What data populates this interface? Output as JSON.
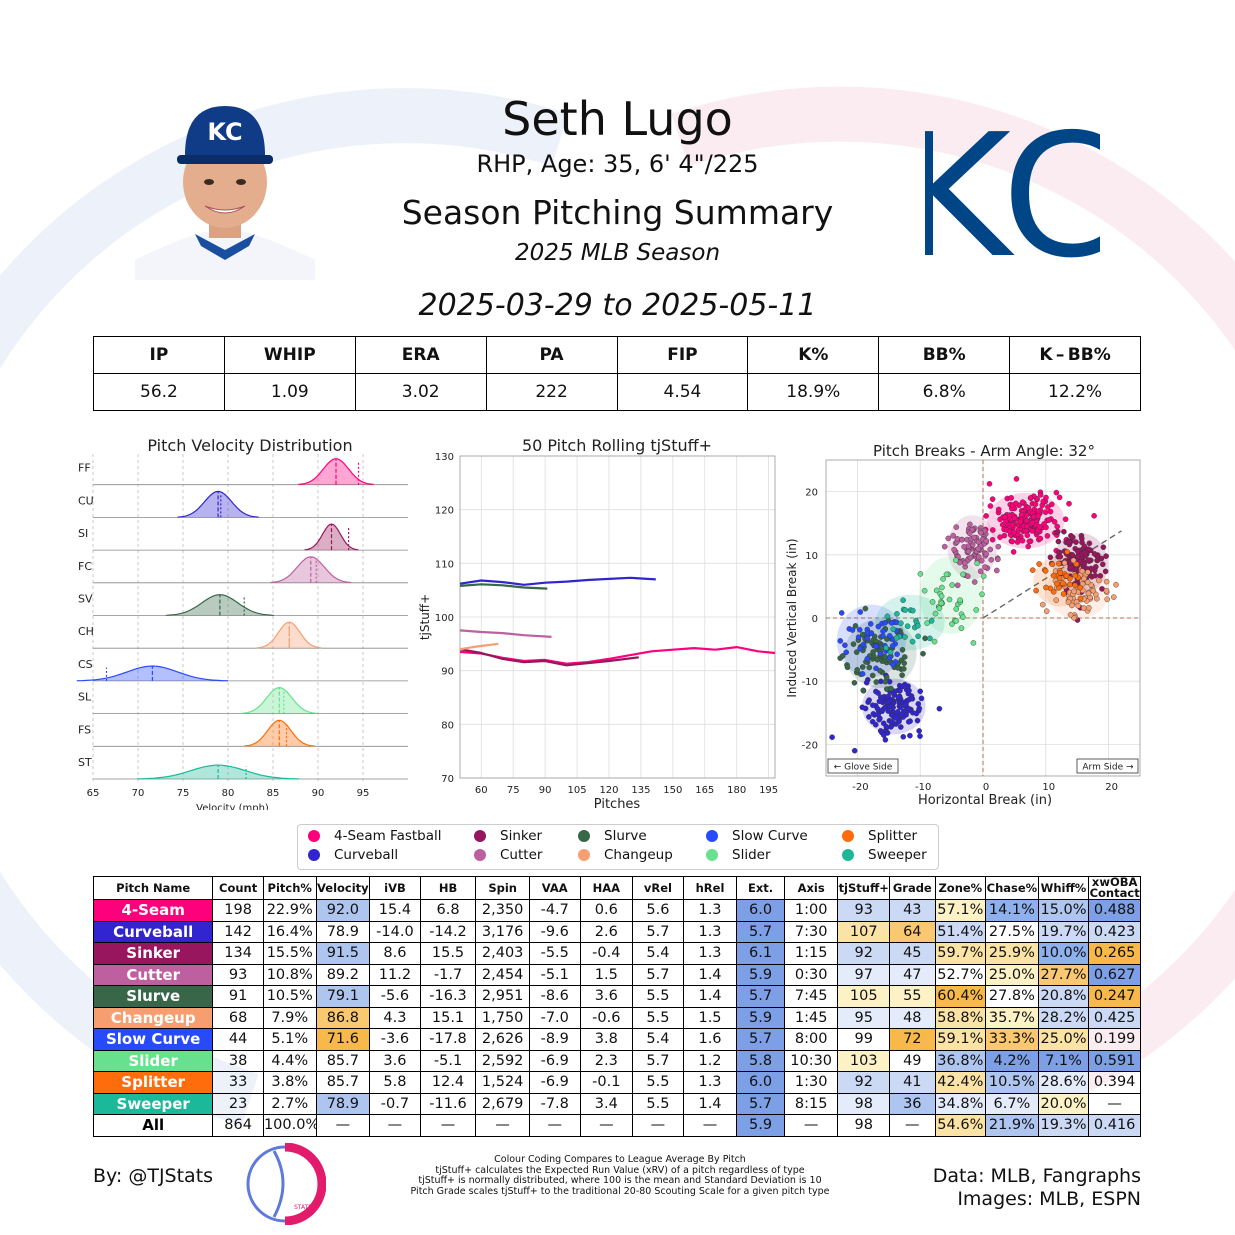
{
  "header": {
    "name": "Seth Lugo",
    "info": "RHP, Age: 35, 6' 4\"/225",
    "title": "Season Pitching Summary",
    "season": "2025 MLB Season",
    "dates": "2025-03-29 to 2025-05-11",
    "team_logo_text": "KC",
    "team_color": "#004687"
  },
  "summary": {
    "headers": [
      "IP",
      "WHIP",
      "ERA",
      "PA",
      "FIP",
      "K%",
      "BB%",
      "K – BB%"
    ],
    "values": [
      "56.2",
      "1.09",
      "3.02",
      "222",
      "4.54",
      "18.9%",
      "6.8%",
      "12.2%"
    ]
  },
  "chart_data": [
    {
      "type": "area",
      "title": "Pitch Velocity Distribution",
      "xlabel": "Velocity (mph)",
      "ylabel": "",
      "xlim": [
        65,
        100
      ],
      "x_ticks": [
        65,
        70,
        75,
        80,
        85,
        90,
        95
      ],
      "series": [
        {
          "code": "FF",
          "mean": 92.0,
          "sd": 1.4,
          "league": 94.5,
          "color": "#FF007D"
        },
        {
          "code": "CU",
          "mean": 78.9,
          "sd": 1.5,
          "league": 79.2,
          "color": "#3025CE"
        },
        {
          "code": "SI",
          "mean": 91.5,
          "sd": 1.0,
          "league": 93.4,
          "color": "#98165D"
        },
        {
          "code": "FC",
          "mean": 89.2,
          "sd": 1.5,
          "league": 89.8,
          "color": "#BE5FA0"
        },
        {
          "code": "SV",
          "mean": 79.1,
          "sd": 2.0,
          "league": 81.8,
          "color": "#376748"
        },
        {
          "code": "CH",
          "mean": 86.8,
          "sd": 1.2,
          "league": 86.8,
          "color": "#F79E70"
        },
        {
          "code": "CS",
          "mean": 71.6,
          "sd": 2.8,
          "league": 66.5,
          "color": "#274BFC"
        },
        {
          "code": "SL",
          "mean": 85.7,
          "sd": 1.4,
          "league": 86.2,
          "color": "#67E18D"
        },
        {
          "code": "FS",
          "mean": 85.7,
          "sd": 1.3,
          "league": 86.5,
          "color": "#FF6C0C"
        },
        {
          "code": "ST",
          "mean": 78.9,
          "sd": 3.0,
          "league": 82.0,
          "color": "#1BB999"
        }
      ]
    },
    {
      "type": "line",
      "title": "50 Pitch Rolling tjStuff+",
      "xlabel": "Pitches",
      "ylabel": "tjStuff+",
      "xlim": [
        50,
        198
      ],
      "ylim": [
        70,
        130
      ],
      "x_ticks": [
        60,
        75,
        90,
        105,
        120,
        135,
        150,
        165,
        180,
        195
      ],
      "y_ticks": [
        70,
        80,
        90,
        100,
        110,
        120,
        130
      ],
      "series": [
        {
          "name": "4-Seam Fastball",
          "color": "#FF007D",
          "x": [
            50,
            60,
            70,
            80,
            90,
            100,
            110,
            120,
            130,
            140,
            150,
            160,
            170,
            180,
            190,
            198
          ],
          "y": [
            93.5,
            93.2,
            92.4,
            91.8,
            92.0,
            91.3,
            91.6,
            92.2,
            92.9,
            93.6,
            93.9,
            94.2,
            93.9,
            94.4,
            93.6,
            93.3
          ]
        },
        {
          "name": "Curveball",
          "color": "#3025CE",
          "x": [
            50,
            60,
            70,
            80,
            90,
            100,
            110,
            120,
            130,
            142
          ],
          "y": [
            106.2,
            106.8,
            106.5,
            106.0,
            106.4,
            106.6,
            106.9,
            107.1,
            107.3,
            107.0
          ]
        },
        {
          "name": "Sinker",
          "color": "#98165D",
          "x": [
            50,
            60,
            70,
            80,
            90,
            100,
            110,
            120,
            134
          ],
          "y": [
            94.0,
            93.3,
            92.2,
            91.6,
            91.8,
            91.0,
            91.4,
            91.8,
            92.5
          ]
        },
        {
          "name": "Cutter",
          "color": "#BE5FA0",
          "x": [
            50,
            60,
            70,
            80,
            93
          ],
          "y": [
            97.5,
            97.2,
            97.0,
            96.6,
            96.3
          ]
        },
        {
          "name": "Slurve",
          "color": "#376748",
          "x": [
            50,
            60,
            70,
            80,
            91
          ],
          "y": [
            105.8,
            106.1,
            105.9,
            105.5,
            105.3
          ]
        },
        {
          "name": "Changeup",
          "color": "#F79E70",
          "x": [
            50,
            58,
            68
          ],
          "y": [
            94.0,
            94.5,
            95.0
          ]
        }
      ]
    },
    {
      "type": "scatter",
      "title": "Pitch Breaks - Arm Angle: 32°",
      "xlabel": "Horizontal Break (in)",
      "ylabel": "Induced Vertical Break (in)",
      "xlim": [
        -25,
        25
      ],
      "ylim": [
        -25,
        25
      ],
      "x_ticks": [
        -20,
        -10,
        0,
        10,
        20
      ],
      "y_ticks": [
        -20,
        -10,
        0,
        10,
        20
      ],
      "arm_angle": 32,
      "glove_label": "← Glove Side",
      "arm_label": "Arm Side →",
      "series": [
        {
          "name": "4-Seam Fastball",
          "color": "#FF007D",
          "cx": 6.8,
          "cy": 15.4,
          "sx": 2.8,
          "sy": 2.0,
          "n": 198
        },
        {
          "name": "Curveball",
          "color": "#3025CE",
          "cx": -14.2,
          "cy": -14.0,
          "sx": 2.3,
          "sy": 2.0,
          "n": 142
        },
        {
          "name": "Sinker",
          "color": "#98165D",
          "cx": 15.5,
          "cy": 8.6,
          "sx": 2.0,
          "sy": 2.2,
          "n": 134
        },
        {
          "name": "Cutter",
          "color": "#BE5FA0",
          "cx": -1.7,
          "cy": 11.2,
          "sx": 1.8,
          "sy": 2.3,
          "n": 93
        },
        {
          "name": "Slurve",
          "color": "#376748",
          "cx": -16.3,
          "cy": -5.6,
          "sx": 2.6,
          "sy": 2.5,
          "n": 91
        },
        {
          "name": "Changeup",
          "color": "#F79E70",
          "cx": 15.1,
          "cy": 4.3,
          "sx": 2.3,
          "sy": 2.0,
          "n": 68
        },
        {
          "name": "Slow Curve",
          "color": "#274BFC",
          "cx": -17.8,
          "cy": -3.6,
          "sx": 2.5,
          "sy": 2.6,
          "n": 44
        },
        {
          "name": "Slider",
          "color": "#67E18D",
          "cx": -5.1,
          "cy": 3.6,
          "sx": 2.3,
          "sy": 2.8,
          "n": 38
        },
        {
          "name": "Splitter",
          "color": "#FF6C0C",
          "cx": 12.4,
          "cy": 5.8,
          "sx": 2.0,
          "sy": 1.8,
          "n": 33
        },
        {
          "name": "Sweeper",
          "color": "#1BB999",
          "cx": -11.6,
          "cy": -0.7,
          "sx": 2.5,
          "sy": 2.0,
          "n": 23
        }
      ]
    }
  ],
  "legend": [
    {
      "name": "4-Seam Fastball",
      "color": "#FF007D"
    },
    {
      "name": "Curveball",
      "color": "#3025CE"
    },
    {
      "name": "Sinker",
      "color": "#98165D"
    },
    {
      "name": "Cutter",
      "color": "#BE5FA0"
    },
    {
      "name": "Slurve",
      "color": "#376748"
    },
    {
      "name": "Changeup",
      "color": "#F79E70"
    },
    {
      "name": "Slow Curve",
      "color": "#274BFC"
    },
    {
      "name": "Slider",
      "color": "#67E18D"
    },
    {
      "name": "Splitter",
      "color": "#FF6C0C"
    },
    {
      "name": "Sweeper",
      "color": "#1BB999"
    }
  ],
  "pitch_table": {
    "headers": [
      "Pitch Name",
      "Count",
      "Pitch%",
      "Velocity",
      "iVB",
      "HB",
      "Spin",
      "VAA",
      "HAA",
      "vRel",
      "hRel",
      "Ext.",
      "Axis",
      "tjStuff+",
      "Grade",
      "Zone%",
      "Chase%",
      "Whiff%",
      "xwOBA Contact"
    ],
    "rows": [
      {
        "name": "4-Seam",
        "color": "#FF007D",
        "cells": [
          "198",
          "22.9%",
          "92.0",
          "15.4",
          "6.8",
          "2,350",
          "-4.7",
          "0.6",
          "5.6",
          "1.3",
          "6.0",
          "1:00",
          "93",
          "43",
          "57.1%",
          "14.1%",
          "15.0%",
          "0.488"
        ],
        "bg": [
          "",
          "",
          "#aec5f0",
          "",
          "",
          "",
          "",
          "",
          "",
          "",
          "#7d9fe6",
          "",
          "#ccd9f5",
          "#ccd9f5",
          "#fcf2c6",
          "#8eb0ed",
          "#aec5f0",
          "#7d9fe6"
        ]
      },
      {
        "name": "Curveball",
        "color": "#3025CE",
        "cells": [
          "142",
          "16.4%",
          "78.9",
          "-14.0",
          "-14.2",
          "3,176",
          "-9.6",
          "2.6",
          "5.7",
          "1.3",
          "5.7",
          "7:30",
          "107",
          "64",
          "51.4%",
          "27.5%",
          "19.7%",
          "0.423"
        ],
        "bg": [
          "",
          "",
          "",
          "",
          "",
          "",
          "",
          "",
          "",
          "",
          "#7d9fe6",
          "",
          "#fbe3a5",
          "#f9c870",
          "#ccd9f5",
          "",
          "#ccd9f5",
          "#ccd9f5"
        ]
      },
      {
        "name": "Sinker",
        "color": "#98165D",
        "cells": [
          "134",
          "15.5%",
          "91.5",
          "8.6",
          "15.5",
          "2,403",
          "-5.5",
          "-0.4",
          "5.4",
          "1.3",
          "6.1",
          "1:15",
          "92",
          "45",
          "59.7%",
          "25.9%",
          "10.0%",
          "0.265"
        ],
        "bg": [
          "",
          "",
          "#aec5f0",
          "",
          "",
          "",
          "",
          "",
          "",
          "",
          "#7d9fe6",
          "",
          "#ccd9f5",
          "#ccd9f5",
          "#fbe3a5",
          "#fbe3a5",
          "#8eb0ed",
          "#f8b84a"
        ]
      },
      {
        "name": "Cutter",
        "color": "#BE5FA0",
        "cells": [
          "93",
          "10.8%",
          "89.2",
          "11.2",
          "-1.7",
          "2,454",
          "-5.1",
          "1.5",
          "5.7",
          "1.4",
          "5.9",
          "0:30",
          "97",
          "47",
          "52.7%",
          "25.0%",
          "27.7%",
          "0.627"
        ],
        "bg": [
          "",
          "",
          "",
          "",
          "",
          "",
          "",
          "",
          "",
          "",
          "#7d9fe6",
          "",
          "#e4ebfa",
          "#e4ebfa",
          "",
          "#fcf2c6",
          "#f9c870",
          "#7d9fe6"
        ]
      },
      {
        "name": "Slurve",
        "color": "#376748",
        "cells": [
          "91",
          "10.5%",
          "79.1",
          "-5.6",
          "-16.3",
          "2,951",
          "-8.6",
          "3.6",
          "5.5",
          "1.4",
          "5.7",
          "7:45",
          "105",
          "55",
          "60.4%",
          "27.8%",
          "20.8%",
          "0.247"
        ],
        "bg": [
          "",
          "",
          "#aec5f0",
          "",
          "",
          "",
          "",
          "",
          "",
          "",
          "#7d9fe6",
          "",
          "#fcf2c6",
          "#fcf2c6",
          "#f8b84a",
          "",
          "#ccd9f5",
          "#f8b84a"
        ]
      },
      {
        "name": "Changeup",
        "color": "#F79E70",
        "cells": [
          "68",
          "7.9%",
          "86.8",
          "4.3",
          "15.1",
          "1,750",
          "-7.0",
          "-0.6",
          "5.5",
          "1.5",
          "5.9",
          "1:45",
          "95",
          "48",
          "58.8%",
          "35.7%",
          "28.2%",
          "0.425"
        ],
        "bg": [
          "",
          "",
          "#f9c870",
          "",
          "",
          "",
          "",
          "",
          "",
          "",
          "#7d9fe6",
          "",
          "#e4ebfa",
          "#e4ebfa",
          "#fbe3a5",
          "#fcf2c6",
          "#ccd9f5",
          "#ccd9f5"
        ]
      },
      {
        "name": "Slow Curve",
        "color": "#274BFC",
        "cells": [
          "44",
          "5.1%",
          "71.6",
          "-3.6",
          "-17.8",
          "2,626",
          "-8.9",
          "3.8",
          "5.4",
          "1.6",
          "5.7",
          "8:00",
          "99",
          "72",
          "59.1%",
          "33.3%",
          "25.0%",
          "0.199"
        ],
        "bg": [
          "",
          "",
          "#f8b84a",
          "",
          "",
          "",
          "",
          "",
          "",
          "",
          "#7d9fe6",
          "",
          "",
          "#f8b84a",
          "#fbe3a5",
          "#f9c870",
          "#fbe3a5",
          ""
        ]
      },
      {
        "name": "Slider",
        "color": "#67E18D",
        "cells": [
          "38",
          "4.4%",
          "85.7",
          "3.6",
          "-5.1",
          "2,592",
          "-6.9",
          "2.3",
          "5.7",
          "1.2",
          "5.8",
          "10:30",
          "103",
          "49",
          "36.8%",
          "4.2%",
          "7.1%",
          "0.591"
        ],
        "bg": [
          "",
          "",
          "",
          "",
          "",
          "",
          "",
          "",
          "",
          "",
          "#7d9fe6",
          "",
          "#fcf2c6",
          "",
          "#aec5f0",
          "#7d9fe6",
          "#7d9fe6",
          "#7d9fe6"
        ]
      },
      {
        "name": "Splitter",
        "color": "#FF6C0C",
        "cells": [
          "33",
          "3.8%",
          "85.7",
          "5.8",
          "12.4",
          "1,524",
          "-6.9",
          "-0.1",
          "5.5",
          "1.3",
          "6.0",
          "1:30",
          "92",
          "41",
          "42.4%",
          "10.5%",
          "28.6%",
          "0.394"
        ],
        "bg": [
          "",
          "",
          "",
          "",
          "",
          "",
          "",
          "",
          "",
          "",
          "#7d9fe6",
          "",
          "#ccd9f5",
          "#ccd9f5",
          "#fbe3a5",
          "#aec5f0",
          "#e4ebfa",
          ""
        ]
      },
      {
        "name": "Sweeper",
        "color": "#1BB999",
        "cells": [
          "23",
          "2.7%",
          "78.9",
          "-0.7",
          "-11.6",
          "2,679",
          "-7.8",
          "3.4",
          "5.5",
          "1.4",
          "5.7",
          "8:15",
          "98",
          "36",
          "34.8%",
          "6.7%",
          "20.0%",
          "—"
        ],
        "bg": [
          "",
          "",
          "#aec5f0",
          "",
          "",
          "",
          "",
          "",
          "",
          "",
          "#7d9fe6",
          "",
          "#e4ebfa",
          "#aec5f0",
          "#e4ebfa",
          "#e4ebfa",
          "#fcf2c6",
          ""
        ]
      },
      {
        "name": "All",
        "color": "#ffffff",
        "cells": [
          "864",
          "100.0%",
          "—",
          "—",
          "—",
          "—",
          "—",
          "—",
          "—",
          "—",
          "5.9",
          "—",
          "98",
          "—",
          "54.6%",
          "21.9%",
          "19.3%",
          "0.416"
        ],
        "bg": [
          "",
          "",
          "",
          "",
          "",
          "",
          "",
          "",
          "",
          "",
          "#7d9fe6",
          "",
          "",
          "",
          "#fbe3a5",
          "#aec5f0",
          "#ccd9f5",
          "#ccd9f5"
        ]
      }
    ]
  },
  "footer": {
    "by": "By: @TJStats",
    "logo_text": "STATS",
    "notes": [
      "Colour Coding Compares to League Average By Pitch",
      "tjStuff+ calculates the Expected Run Value (xRV) of a pitch regardless of type",
      "tjStuff+ is normally distributed, where 100 is the mean and Standard Deviation is 10",
      "Pitch Grade scales tjStuff+ to the traditional 20-80 Scouting Scale for a given pitch type"
    ],
    "source_data": "Data: MLB, Fangraphs",
    "source_images": "Images: MLB, ESPN"
  }
}
